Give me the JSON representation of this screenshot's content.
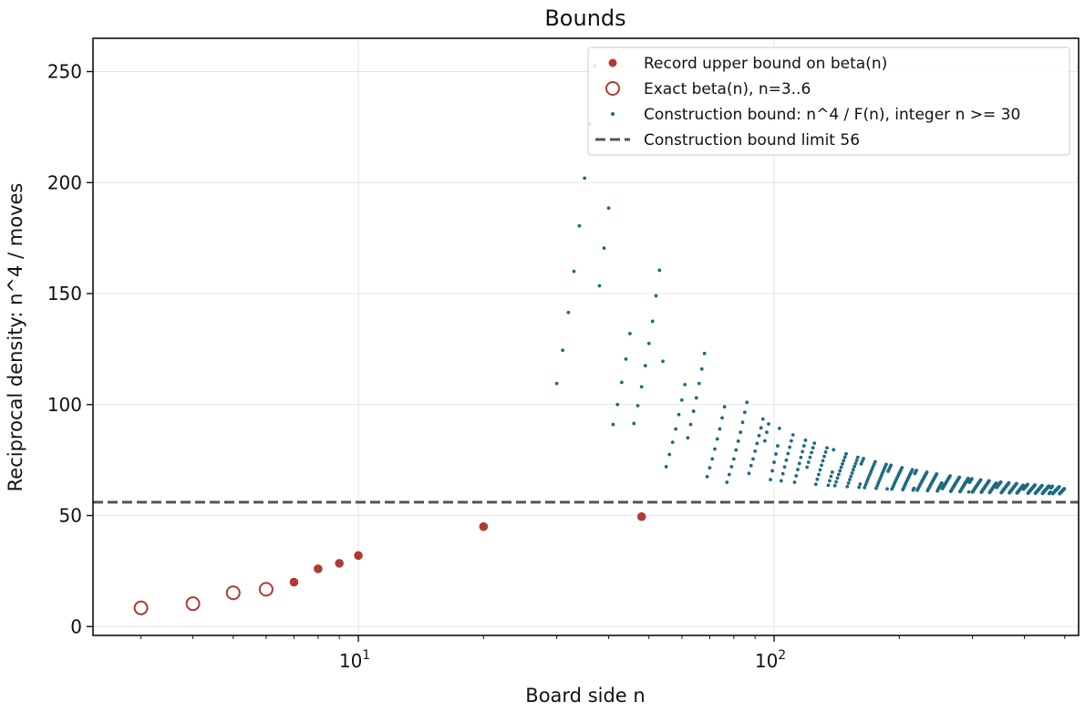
{
  "chart_data": {
    "type": "scatter",
    "title": "Bounds",
    "xlabel": "Board side n",
    "ylabel": "Reciprocal density: n^4 / moves",
    "x_scale": "log",
    "xlim": [
      2.3,
      540
    ],
    "ylim": [
      -4,
      265
    ],
    "x_ticks": [
      {
        "value": 10,
        "base": "10",
        "exp": "1"
      },
      {
        "value": 100,
        "base": "10",
        "exp": "2"
      }
    ],
    "x_minor_ticks": [
      3,
      4,
      5,
      6,
      7,
      8,
      9,
      20,
      30,
      40,
      50,
      60,
      70,
      80,
      90,
      200,
      300,
      400,
      500
    ],
    "y_ticks": [
      0,
      50,
      100,
      150,
      200,
      250
    ],
    "grid": true,
    "legend_position": "upper right",
    "colors": {
      "record": "#b03a33",
      "exact": "#b03a33",
      "construction": "#1e6b80",
      "limit": "#555555"
    },
    "series": [
      {
        "name": "Record upper bound on beta(n)",
        "marker": "filled-circle",
        "points": [
          [
            7,
            20
          ],
          [
            8,
            26
          ],
          [
            9,
            28.5
          ],
          [
            10,
            32
          ],
          [
            20,
            45
          ],
          [
            48,
            49.5
          ]
        ]
      },
      {
        "name": "Exact beta(n), n=3..6",
        "marker": "open-circle",
        "points": [
          [
            3,
            8.4
          ],
          [
            4,
            10.3
          ],
          [
            5,
            15.2
          ],
          [
            6,
            16.8
          ]
        ]
      },
      {
        "name": "Construction bound: n^4 / F(n), integer n >= 30",
        "marker": "small-dot",
        "points": [
          [
            30,
            109.5
          ],
          [
            31,
            124.5
          ],
          [
            32,
            141.5
          ],
          [
            33,
            160
          ],
          [
            34,
            180.5
          ],
          [
            35,
            202
          ],
          [
            36,
            226.5
          ],
          [
            37,
            252.5
          ],
          [
            38,
            153.5
          ],
          [
            39,
            170.5
          ],
          [
            40,
            188.5
          ],
          [
            41,
            91
          ],
          [
            42,
            100
          ],
          [
            43,
            110
          ],
          [
            44,
            120.5
          ],
          [
            45,
            132
          ],
          [
            46,
            91.5
          ],
          [
            47,
            99.5
          ],
          [
            48,
            108
          ],
          [
            49,
            117.5
          ],
          [
            50,
            127.5
          ],
          [
            51,
            137.5
          ],
          [
            52,
            149
          ],
          [
            53,
            160.5
          ],
          [
            54,
            119.5
          ],
          [
            55,
            72
          ],
          [
            56,
            77.5
          ],
          [
            57,
            83
          ],
          [
            58,
            89
          ],
          [
            59,
            95.5
          ],
          [
            60,
            102
          ],
          [
            61,
            109
          ],
          [
            62,
            85
          ],
          [
            63,
            91
          ],
          [
            64,
            97
          ],
          [
            65,
            103
          ],
          [
            66,
            109.5
          ],
          [
            67,
            116
          ],
          [
            68,
            123
          ],
          [
            69,
            67.5
          ],
          [
            70,
            71.5
          ],
          [
            71,
            75.5
          ],
          [
            72,
            80
          ],
          [
            73,
            84.5
          ],
          [
            74,
            89
          ],
          [
            75,
            94
          ],
          [
            76,
            99
          ],
          [
            77,
            65
          ],
          [
            78,
            68.5
          ],
          [
            79,
            72
          ],
          [
            80,
            75.5
          ],
          [
            81,
            79.5
          ],
          [
            82,
            83.5
          ],
          [
            83,
            87.5
          ],
          [
            84,
            92
          ],
          [
            85,
            96.5
          ],
          [
            86,
            101
          ],
          [
            87,
            69
          ],
          [
            88,
            72.5
          ],
          [
            89,
            75.5
          ],
          [
            90,
            79
          ],
          [
            91,
            82.5
          ],
          [
            92,
            86
          ],
          [
            93,
            89.5
          ],
          [
            94,
            93.5
          ]
        ],
        "generated_range": {
          "n_start": 95,
          "n_end": 499,
          "limit": 56,
          "amplitude_near": 30,
          "amplitude_far": 3.2
        }
      },
      {
        "name": "Construction bound limit 56",
        "marker": "dashed-line",
        "y": 56
      }
    ]
  }
}
